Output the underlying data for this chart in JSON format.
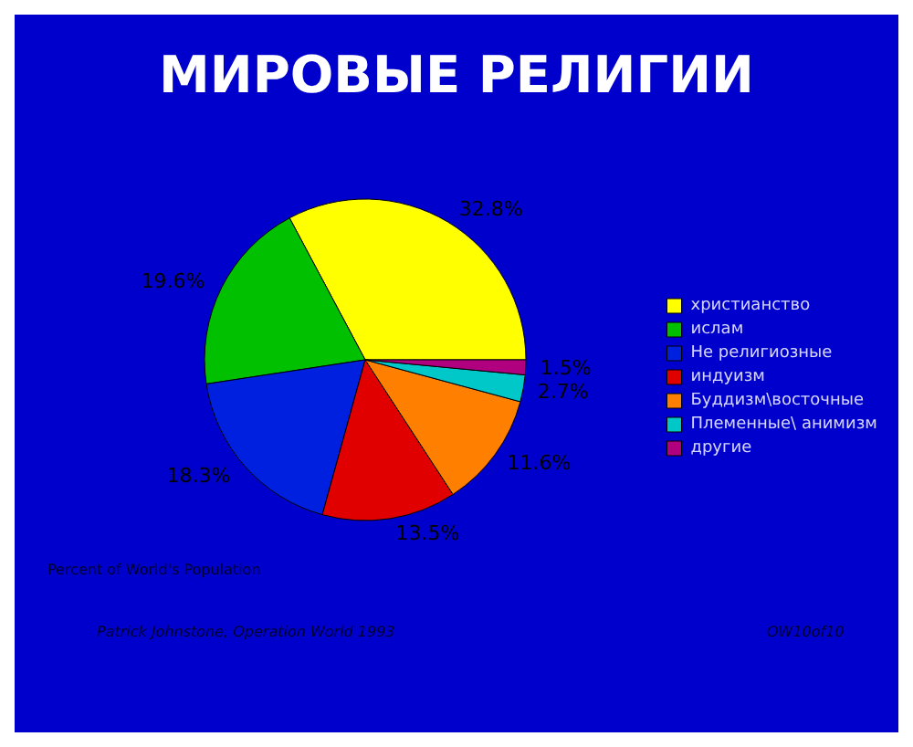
{
  "chart_data": {
    "type": "pie",
    "title": "МИРОВЫЕ РЕЛИГИИ",
    "categories": [
      "христианство",
      "ислам",
      "Не религиозные",
      "индуизм",
      "Буддизм\\восточные",
      "Племенные\\ анимизм",
      "другие"
    ],
    "values": [
      32.8,
      19.6,
      18.3,
      13.5,
      11.6,
      2.7,
      1.5
    ],
    "value_labels": [
      "32.8%",
      "19.6%",
      "18.3%",
      "13.5%",
      "11.6%",
      "2.7%",
      "1.5%"
    ],
    "colors": [
      "#ffff00",
      "#00c000",
      "#0020e0",
      "#e00000",
      "#ff8000",
      "#00c8c8",
      "#b00080"
    ],
    "legend": "right",
    "annotations": [
      "Percent of World's Population",
      "Patrick Johnstone, Operation World 1993",
      "OW10of10"
    ]
  }
}
